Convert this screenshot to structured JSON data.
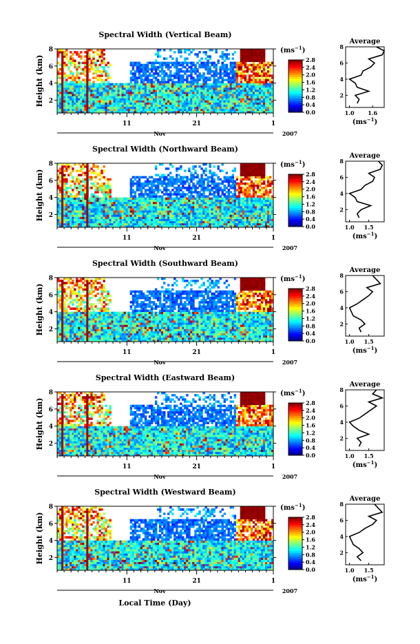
{
  "figure": {
    "shared_xlabel": "Local Time (Day)",
    "month_label": "Nov",
    "year_label": "2007",
    "average_title": "Average",
    "unit_label": "(ms",
    "unit_sup": "−1",
    "colorbar_ticks": [
      "0.0",
      "0.4",
      "0.8",
      "1.2",
      "1.6",
      "2.0",
      "2.4",
      "2.8"
    ],
    "height_ticks": [
      "2",
      "4",
      "6",
      "8"
    ],
    "time_ticks": [
      "11",
      "21",
      "1"
    ]
  },
  "chart_data": [
    {
      "type": "heatmap",
      "title": "Spectral Width (Vertical Beam)",
      "ylabel": "Height (km)",
      "ylim": [
        0.5,
        8
      ],
      "xlabel": "Local Time (Day)",
      "x_ticks": [
        "11",
        "21",
        "1"
      ],
      "color_range": [
        0.0,
        2.8
      ],
      "colorbar_label": "(ms−1)",
      "average_profile": {
        "title": "Average",
        "xlabel": "(ms−1)",
        "x_ticks": [
          "1.0",
          "1.6"
        ],
        "xlim": [
          0.9,
          1.9
        ],
        "y_ticks": [
          "2",
          "4",
          "6",
          "8"
        ],
        "height": [
          1.0,
          1.5,
          2.0,
          2.5,
          3.0,
          3.5,
          4.0,
          4.5,
          5.0,
          5.5,
          6.0,
          6.5,
          7.0,
          7.5,
          8.0
        ],
        "width": [
          1.2,
          1.25,
          1.15,
          1.5,
          1.2,
          1.15,
          1.0,
          1.3,
          1.35,
          1.55,
          1.65,
          1.5,
          1.85,
          1.9,
          1.7
        ]
      }
    },
    {
      "type": "heatmap",
      "title": "Spectral Width (Northward Beam)",
      "ylabel": "Height (km)",
      "ylim": [
        0.5,
        8
      ],
      "xlabel": "Local Time (Day)",
      "x_ticks": [
        "11",
        "21",
        "1"
      ],
      "color_range": [
        0.0,
        2.8
      ],
      "colorbar_label": "(ms−1)",
      "average_profile": {
        "title": "Average",
        "xlabel": "(ms−1)",
        "x_ticks": [
          "1.0",
          "1.5"
        ],
        "xlim": [
          0.9,
          1.9
        ],
        "y_ticks": [
          "2",
          "4",
          "6",
          "8"
        ],
        "height": [
          1.0,
          1.5,
          2.0,
          2.5,
          3.0,
          3.5,
          4.0,
          4.5,
          5.0,
          5.5,
          6.0,
          6.5,
          7.0,
          7.5,
          8.0
        ],
        "width": [
          1.25,
          1.2,
          1.3,
          1.55,
          1.2,
          1.15,
          1.0,
          1.3,
          1.4,
          1.6,
          1.65,
          1.5,
          1.8,
          1.85,
          1.75
        ]
      }
    },
    {
      "type": "heatmap",
      "title": "Spectral Width (Southward Beam)",
      "ylabel": "Height (km)",
      "ylim": [
        0.5,
        8
      ],
      "xlabel": "Local Time (Day)",
      "x_ticks": [
        "11",
        "21",
        "1"
      ],
      "color_range": [
        0.0,
        2.8
      ],
      "colorbar_label": "(ms−1)",
      "average_profile": {
        "title": "Average",
        "xlabel": "(ms−1)",
        "x_ticks": [
          "1.0",
          "1.5"
        ],
        "xlim": [
          0.9,
          1.9
        ],
        "y_ticks": [
          "2",
          "4",
          "6",
          "8"
        ],
        "height": [
          1.0,
          1.5,
          2.0,
          2.5,
          3.0,
          3.5,
          4.0,
          4.5,
          5.0,
          5.5,
          6.0,
          6.5,
          7.0,
          7.5,
          8.0
        ],
        "width": [
          1.3,
          1.25,
          1.4,
          1.3,
          1.1,
          1.05,
          1.0,
          1.2,
          1.35,
          1.5,
          1.6,
          1.45,
          1.8,
          1.7,
          1.6
        ]
      }
    },
    {
      "type": "heatmap",
      "title": "Spectral Width (Eastward Beam)",
      "ylabel": "Height (km)",
      "ylim": [
        0.5,
        8
      ],
      "xlabel": "Local Time (Day)",
      "x_ticks": [
        "11",
        "21",
        "1"
      ],
      "color_range": [
        0.0,
        2.8
      ],
      "colorbar_label": "(ms−1)",
      "average_profile": {
        "title": "Average",
        "xlabel": "(ms−1)",
        "x_ticks": [
          "1.0",
          "1.5"
        ],
        "xlim": [
          0.9,
          1.9
        ],
        "y_ticks": [
          "2",
          "4",
          "6",
          "8"
        ],
        "height": [
          1.0,
          1.5,
          2.0,
          2.5,
          3.0,
          3.5,
          4.0,
          4.5,
          5.0,
          5.5,
          6.0,
          6.5,
          7.0,
          7.5,
          8.0
        ],
        "width": [
          1.25,
          1.3,
          1.2,
          1.5,
          1.25,
          1.1,
          1.0,
          1.25,
          1.4,
          1.55,
          1.7,
          1.5,
          1.85,
          1.6,
          1.7
        ]
      }
    },
    {
      "type": "heatmap",
      "title": "Spectral Width (Westward Beam)",
      "ylabel": "Height (km)",
      "ylim": [
        0.5,
        8
      ],
      "xlabel": "Local Time (Day)",
      "x_ticks": [
        "11",
        "21",
        "1"
      ],
      "color_range": [
        0.0,
        2.8
      ],
      "colorbar_label": "(ms−1)",
      "average_profile": {
        "title": "Average",
        "xlabel": "(ms−1)",
        "x_ticks": [
          "1.0",
          "1.5"
        ],
        "xlim": [
          0.9,
          1.9
        ],
        "y_ticks": [
          "2",
          "4",
          "6",
          "8"
        ],
        "height": [
          1.0,
          1.5,
          2.0,
          2.5,
          3.0,
          3.5,
          4.0,
          4.5,
          5.0,
          5.5,
          6.0,
          6.5,
          7.0,
          7.5,
          8.0
        ],
        "width": [
          1.3,
          1.2,
          1.35,
          1.25,
          1.1,
          1.05,
          1.0,
          1.25,
          1.4,
          1.6,
          1.7,
          1.5,
          1.85,
          1.75,
          1.65
        ]
      }
    }
  ]
}
